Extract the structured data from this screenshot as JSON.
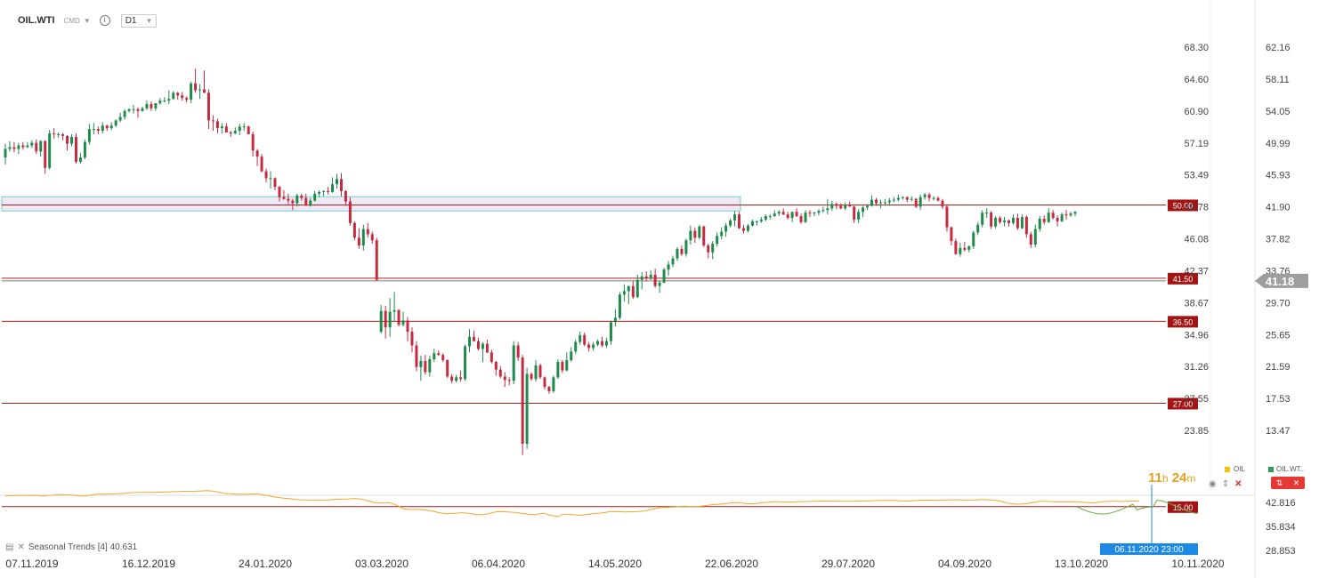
{
  "header": {
    "symbol": "OIL.WTI",
    "exchange": "CMD",
    "timeframe": "D1"
  },
  "chart_data": {
    "type": "candlestick",
    "candles": [
      [
        55.5,
        57.1,
        54.7,
        56.5
      ],
      [
        56.5,
        57.4,
        56.2,
        56.7
      ],
      [
        56.7,
        57.3,
        56.1,
        56.5
      ],
      [
        56.5,
        57.2,
        55.9,
        56.9
      ],
      [
        56.9,
        57.3,
        56.4,
        56.7
      ],
      [
        56.7,
        57.3,
        56.6,
        56.9
      ],
      [
        56.9,
        57.5,
        56.6,
        57.2
      ],
      [
        57.2,
        57.6,
        55.9,
        56.2
      ],
      [
        56.2,
        57.5,
        55.6,
        57.4
      ],
      [
        57.4,
        57.5,
        53.6,
        54.3
      ],
      [
        54.3,
        58.7,
        54.1,
        58.3
      ],
      [
        58.3,
        58.9,
        57.7,
        58.2
      ],
      [
        58.2,
        58.4,
        57.8,
        58.2
      ],
      [
        58.2,
        58.3,
        57.5,
        58.0
      ],
      [
        58.0,
        58.1,
        56.3,
        57.1
      ],
      [
        57.1,
        58.2,
        56.8,
        57.9
      ],
      [
        57.9,
        58.3,
        54.8,
        55.0
      ],
      [
        55.0,
        56.0,
        54.8,
        55.5
      ],
      [
        55.5,
        57.6,
        55.3,
        57.3
      ],
      [
        57.3,
        59.4,
        57.0,
        58.8
      ],
      [
        58.8,
        59.5,
        58.2,
        58.8
      ],
      [
        58.8,
        59.1,
        58.2,
        58.6
      ],
      [
        58.6,
        59.6,
        58.3,
        59.2
      ],
      [
        59.2,
        59.3,
        58.6,
        58.9
      ],
      [
        58.9,
        59.6,
        58.7,
        59.2
      ],
      [
        59.2,
        59.9,
        59.0,
        59.8
      ],
      [
        59.8,
        60.7,
        59.6,
        60.2
      ],
      [
        60.2,
        61.1,
        59.9,
        60.9
      ],
      [
        60.9,
        61.2,
        60.7,
        61.1
      ],
      [
        61.1,
        61.6,
        60.6,
        61.1
      ],
      [
        61.1,
        61.3,
        60.1,
        60.9
      ],
      [
        60.9,
        61.4,
        60.8,
        61.2
      ],
      [
        61.2,
        62.1,
        61.0,
        61.7
      ],
      [
        61.7,
        62.0,
        60.9,
        61.2
      ],
      [
        61.2,
        61.8,
        60.9,
        61.8
      ],
      [
        61.8,
        62.4,
        61.6,
        62.1
      ],
      [
        62.1,
        62.5,
        61.9,
        62.1
      ],
      [
        62.1,
        63.3,
        61.7,
        62.3
      ],
      [
        62.3,
        63.2,
        62.2,
        63.0
      ],
      [
        63.0,
        63.1,
        62.2,
        62.7
      ],
      [
        62.7,
        63.1,
        62.1,
        62.4
      ],
      [
        62.4,
        62.6,
        61.9,
        62.2
      ],
      [
        62.2,
        64.3,
        61.8,
        64.1
      ],
      [
        64.1,
        65.8,
        63.0,
        63.3
      ],
      [
        63.3,
        64.0,
        62.3,
        63.4
      ],
      [
        63.4,
        65.6,
        63.0,
        63.0
      ],
      [
        63.0,
        63.4,
        58.8,
        59.8
      ],
      [
        59.8,
        60.4,
        58.6,
        59.7
      ],
      [
        59.7,
        60.0,
        58.3,
        58.9
      ],
      [
        58.9,
        59.5,
        58.3,
        59.1
      ],
      [
        59.1,
        59.5,
        58.4,
        58.4
      ],
      [
        58.4,
        58.6,
        57.9,
        58.3
      ],
      [
        58.3,
        59.0,
        58.2,
        58.6
      ],
      [
        58.6,
        59.4,
        58.1,
        59.1
      ],
      [
        59.1,
        59.5,
        58.6,
        59.1
      ],
      [
        59.1,
        59.2,
        58.2,
        58.2
      ],
      [
        58.2,
        58.5,
        55.6,
        56.3
      ],
      [
        56.3,
        56.5,
        54.5,
        55.6
      ],
      [
        55.6,
        55.9,
        53.8,
        53.9
      ],
      [
        53.9,
        54.2,
        52.6,
        53.1
      ],
      [
        53.1,
        53.9,
        51.9,
        53.1
      ],
      [
        53.1,
        53.2,
        51.7,
        52.1
      ],
      [
        52.1,
        52.2,
        50.4,
        50.9
      ],
      [
        50.9,
        51.7,
        50.6,
        50.7
      ],
      [
        50.7,
        51.3,
        50.1,
        50.5
      ],
      [
        50.5,
        50.7,
        49.4,
        50.2
      ],
      [
        50.2,
        51.3,
        49.8,
        51.1
      ],
      [
        51.1,
        51.3,
        50.5,
        50.8
      ],
      [
        50.8,
        51.3,
        49.9,
        49.9
      ],
      [
        49.9,
        50.8,
        49.8,
        50.5
      ],
      [
        50.5,
        51.6,
        50.4,
        51.3
      ],
      [
        51.3,
        51.7,
        50.9,
        51.5
      ],
      [
        51.5,
        51.7,
        51.0,
        51.6
      ],
      [
        51.6,
        52.1,
        51.2,
        51.5
      ],
      [
        51.5,
        53.2,
        51.4,
        52.4
      ],
      [
        52.4,
        53.6,
        51.9,
        53.0
      ],
      [
        53.0,
        53.7,
        51.0,
        51.6
      ],
      [
        51.6,
        51.7,
        49.9,
        50.4
      ],
      [
        50.4,
        50.9,
        47.6,
        47.9
      ],
      [
        47.9,
        48.1,
        45.9,
        46.2
      ],
      [
        46.2,
        47.3,
        44.9,
        45.3
      ],
      [
        45.3,
        47.7,
        44.7,
        47.2
      ],
      [
        47.2,
        47.9,
        46.2,
        46.6
      ],
      [
        46.6,
        46.9,
        45.5,
        45.9
      ],
      [
        45.9,
        46.2,
        41.2,
        41.3
      ],
      [
        35.3,
        38.4,
        35.1,
        37.7
      ],
      [
        37.7,
        38.3,
        34.5,
        35.8
      ],
      [
        35.8,
        39.2,
        34.7,
        37.6
      ],
      [
        37.6,
        39.9,
        36.4,
        37.8
      ],
      [
        37.8,
        37.9,
        35.9,
        36.1
      ],
      [
        36.1,
        37.6,
        35.9,
        36.6
      ],
      [
        36.6,
        37.0,
        34.2,
        35.3
      ],
      [
        35.3,
        35.8,
        32.9,
        33.7
      ],
      [
        33.7,
        34.2,
        30.7,
        31.2
      ],
      [
        31.2,
        32.5,
        29.6,
        31.9
      ],
      [
        31.9,
        32.6,
        30.3,
        30.6
      ],
      [
        30.6,
        32.5,
        30.1,
        32.1
      ],
      [
        32.1,
        33.3,
        31.8,
        32.8
      ],
      [
        32.8,
        33.1,
        32.5,
        32.6
      ],
      [
        32.6,
        32.8,
        31.8,
        32.0
      ],
      [
        32.0,
        32.1,
        29.9,
        30.1
      ],
      [
        30.1,
        30.4,
        29.3,
        29.6
      ],
      [
        29.6,
        30.3,
        29.4,
        30.0
      ],
      [
        30.0,
        30.8,
        29.5,
        29.8
      ],
      [
        29.8,
        33.8,
        29.6,
        33.6
      ],
      [
        33.6,
        35.6,
        32.9,
        34.7
      ],
      [
        34.7,
        35.4,
        34.2,
        34.2
      ],
      [
        34.2,
        34.6,
        33.1,
        33.3
      ],
      [
        33.3,
        34.1,
        31.8,
        33.9
      ],
      [
        33.9,
        34.4,
        32.8,
        32.9
      ],
      [
        32.9,
        33.2,
        31.6,
        31.8
      ],
      [
        31.8,
        31.9,
        30.2,
        30.9
      ],
      [
        30.9,
        31.3,
        29.9,
        30.1
      ],
      [
        30.1,
        30.6,
        28.9,
        29.7
      ],
      [
        29.7,
        30.0,
        29.1,
        29.6
      ],
      [
        29.6,
        34.2,
        29.2,
        33.7
      ],
      [
        33.7,
        34.1,
        31.9,
        32.3
      ],
      [
        32.3,
        32.6,
        21.0,
        22.3
      ],
      [
        22.3,
        31.1,
        21.7,
        30.4
      ],
      [
        30.4,
        30.6,
        29.6,
        29.8
      ],
      [
        29.8,
        32.0,
        29.5,
        31.4
      ],
      [
        31.4,
        31.6,
        29.8,
        30.0
      ],
      [
        30.0,
        30.1,
        28.6,
        28.9
      ],
      [
        28.9,
        29.0,
        28.1,
        28.4
      ],
      [
        28.4,
        30.2,
        28.2,
        30.0
      ],
      [
        30.0,
        32.1,
        29.8,
        31.8
      ],
      [
        31.8,
        32.0,
        30.5,
        30.8
      ],
      [
        30.8,
        32.9,
        30.7,
        32.0
      ],
      [
        32.0,
        33.5,
        31.8,
        33.0
      ],
      [
        33.0,
        34.4,
        32.7,
        34.1
      ],
      [
        34.1,
        35.3,
        33.8,
        34.9
      ],
      [
        34.9,
        35.2,
        33.6,
        33.8
      ],
      [
        33.8,
        34.1,
        33.0,
        33.4
      ],
      [
        33.4,
        34.1,
        33.1,
        33.8
      ],
      [
        33.8,
        34.4,
        33.6,
        34.2
      ],
      [
        34.2,
        34.7,
        33.5,
        33.7
      ],
      [
        33.7,
        34.6,
        33.4,
        34.2
      ],
      [
        34.2,
        36.6,
        33.8,
        36.4
      ],
      [
        36.4,
        37.9,
        35.9,
        36.9
      ],
      [
        36.9,
        39.9,
        36.7,
        39.6
      ],
      [
        39.6,
        40.8,
        38.8,
        40.0
      ],
      [
        40.0,
        40.6,
        38.5,
        40.6
      ],
      [
        40.6,
        41.2,
        39.1,
        39.3
      ],
      [
        39.3,
        41.9,
        39.2,
        41.3
      ],
      [
        41.3,
        42.2,
        40.2,
        41.7
      ],
      [
        41.7,
        42.3,
        41.1,
        41.5
      ],
      [
        41.5,
        42.4,
        41.3,
        41.9
      ],
      [
        41.9,
        42.6,
        40.4,
        40.6
      ],
      [
        40.6,
        41.2,
        39.8,
        41.0
      ],
      [
        41.0,
        42.7,
        40.9,
        42.5
      ],
      [
        42.5,
        43.5,
        41.8,
        43.1
      ],
      [
        43.1,
        44.1,
        42.8,
        43.8
      ],
      [
        43.8,
        45.1,
        43.5,
        44.9
      ],
      [
        44.9,
        45.3,
        44.1,
        44.3
      ],
      [
        44.3,
        46.1,
        44.0,
        45.9
      ],
      [
        45.9,
        47.6,
        45.4,
        47.0
      ],
      [
        47.0,
        47.4,
        45.6,
        46.2
      ],
      [
        46.2,
        47.7,
        46.0,
        47.5
      ],
      [
        47.5,
        47.6,
        45.1,
        45.3
      ],
      [
        45.3,
        45.5,
        43.8,
        44.5
      ],
      [
        44.5,
        45.8,
        43.7,
        45.5
      ],
      [
        45.5,
        46.8,
        45.2,
        46.4
      ],
      [
        46.4,
        47.4,
        46.0,
        46.9
      ],
      [
        46.9,
        47.9,
        46.3,
        47.6
      ],
      [
        47.6,
        48.4,
        47.4,
        48.2
      ],
      [
        48.2,
        49.3,
        47.5,
        48.9
      ],
      [
        48.9,
        49.2,
        47.2,
        47.3
      ],
      [
        47.3,
        47.7,
        46.7,
        47.0
      ],
      [
        47.0,
        47.8,
        46.8,
        47.6
      ],
      [
        47.6,
        48.3,
        47.5,
        48.1
      ],
      [
        48.1,
        48.2,
        47.6,
        48.1
      ],
      [
        48.1,
        48.6,
        47.9,
        48.3
      ],
      [
        48.3,
        48.9,
        48.1,
        48.7
      ],
      [
        48.7,
        48.9,
        48.3,
        48.7
      ],
      [
        48.7,
        49.4,
        48.6,
        49.0
      ],
      [
        49.0,
        49.4,
        48.7,
        49.2
      ],
      [
        49.2,
        49.6,
        48.8,
        48.9
      ],
      [
        48.9,
        49.2,
        48.3,
        48.5
      ],
      [
        48.5,
        49.2,
        48.0,
        49.2
      ],
      [
        49.2,
        49.6,
        48.6,
        48.7
      ],
      [
        48.7,
        49.0,
        47.8,
        48.0
      ],
      [
        48.0,
        49.4,
        47.9,
        49.1
      ],
      [
        49.1,
        49.4,
        48.6,
        49.0
      ],
      [
        49.0,
        49.2,
        48.7,
        49.1
      ],
      [
        49.1,
        49.5,
        48.8,
        49.3
      ],
      [
        49.3,
        49.8,
        49.1,
        49.4
      ],
      [
        49.4,
        50.7,
        48.9,
        49.6
      ],
      [
        49.6,
        50.5,
        49.3,
        50.1
      ],
      [
        50.1,
        50.3,
        49.5,
        49.9
      ],
      [
        49.9,
        50.2,
        49.5,
        49.6
      ],
      [
        49.6,
        50.3,
        49.4,
        50.0
      ],
      [
        50.0,
        50.4,
        49.8,
        49.8
      ],
      [
        49.8,
        49.9,
        47.9,
        48.3
      ],
      [
        48.3,
        49.5,
        47.9,
        49.2
      ],
      [
        49.2,
        49.9,
        48.6,
        49.7
      ],
      [
        49.7,
        50.1,
        49.4,
        49.9
      ],
      [
        49.9,
        51.1,
        49.8,
        50.6
      ],
      [
        50.6,
        50.8,
        49.9,
        50.2
      ],
      [
        50.2,
        50.6,
        49.6,
        50.3
      ],
      [
        50.3,
        50.7,
        49.9,
        50.3
      ],
      [
        50.3,
        50.8,
        49.9,
        50.5
      ],
      [
        50.5,
        50.9,
        50.3,
        50.6
      ],
      [
        50.6,
        51.2,
        50.4,
        50.8
      ],
      [
        50.8,
        51.0,
        50.6,
        50.9
      ],
      [
        50.9,
        51.0,
        50.3,
        50.6
      ],
      [
        50.6,
        51.0,
        50.4,
        50.7
      ],
      [
        50.7,
        50.8,
        49.6,
        49.8
      ],
      [
        49.8,
        51.2,
        49.4,
        50.9
      ],
      [
        50.9,
        51.4,
        50.6,
        51.2
      ],
      [
        51.2,
        51.4,
        50.4,
        50.8
      ],
      [
        50.8,
        51.0,
        50.5,
        50.8
      ],
      [
        50.8,
        51.0,
        50.4,
        50.5
      ],
      [
        50.5,
        50.7,
        49.5,
        49.8
      ],
      [
        49.8,
        50.0,
        46.9,
        47.4
      ],
      [
        47.4,
        47.5,
        45.3,
        45.8
      ],
      [
        45.8,
        46.1,
        44.2,
        44.3
      ],
      [
        44.3,
        45.6,
        44.0,
        45.0
      ],
      [
        45.0,
        45.7,
        44.6,
        44.8
      ],
      [
        44.8,
        45.3,
        44.5,
        45.2
      ],
      [
        45.2,
        47.0,
        44.9,
        46.8
      ],
      [
        46.8,
        48.0,
        46.5,
        47.7
      ],
      [
        47.7,
        49.4,
        47.4,
        49.1
      ],
      [
        49.1,
        49.6,
        48.5,
        49.1
      ],
      [
        49.1,
        49.3,
        47.2,
        47.5
      ],
      [
        47.5,
        48.7,
        47.3,
        48.5
      ],
      [
        48.5,
        48.7,
        47.8,
        48.0
      ],
      [
        48.0,
        48.6,
        47.5,
        48.2
      ],
      [
        48.2,
        48.3,
        47.5,
        47.9
      ],
      [
        47.9,
        48.9,
        47.7,
        48.5
      ],
      [
        48.5,
        49.0,
        47.1,
        47.3
      ],
      [
        47.3,
        48.9,
        47.2,
        48.6
      ],
      [
        48.6,
        48.8,
        46.2,
        46.6
      ],
      [
        46.6,
        46.9,
        45.0,
        45.4
      ],
      [
        45.4,
        47.7,
        45.1,
        47.2
      ],
      [
        47.2,
        48.7,
        46.9,
        48.4
      ],
      [
        48.4,
        48.8,
        47.7,
        48.0
      ],
      [
        48.0,
        49.6,
        47.9,
        49.1
      ],
      [
        49.1,
        49.4,
        48.3,
        48.5
      ],
      [
        48.5,
        48.8,
        47.5,
        48.1
      ],
      [
        48.1,
        49.1,
        48.0,
        48.9
      ],
      [
        48.9,
        49.4,
        48.3,
        48.8
      ],
      [
        48.8,
        49.2,
        48.6,
        49.0
      ],
      [
        49.0,
        49.3,
        48.7,
        49.2
      ]
    ],
    "price_axis": {
      "labels": [
        "68.30",
        "64.60",
        "60.90",
        "57.19",
        "53.49",
        "49.78",
        "46.08",
        "42.37",
        "38.67",
        "34.96",
        "31.26",
        "27.55",
        "23.85"
      ],
      "min": 16.8,
      "max": 74.0
    },
    "secondary_axis": {
      "labels": [
        "62.16",
        "58.11",
        "54.05",
        "49.99",
        "45.93",
        "41.90",
        "37.82",
        "33.76",
        "29.70",
        "25.65",
        "21.59",
        "17.53",
        "13.47"
      ]
    },
    "horizontal_lines": [
      {
        "price": 50.0,
        "label": "50.00"
      },
      {
        "price": 41.5,
        "label": "41.50"
      },
      {
        "price": 36.5,
        "label": "36.50"
      },
      {
        "price": 27.0,
        "label": "27.00"
      },
      {
        "price": 15.0,
        "label": "15.00"
      }
    ],
    "current_price": {
      "label": "41.18"
    },
    "zone": {
      "price_low": 49.3,
      "price_high": 50.95
    },
    "x_labels": [
      "07.11.2019",
      "16.12.2019",
      "24.01.2020",
      "03.03.2020",
      "06.04.2020",
      "14.05.2020",
      "22.06.2020",
      "29.07.2020",
      "04.09.2020",
      "13.10.2020",
      "10.11.2020"
    ],
    "indicator": {
      "name": "Seasonal Trends",
      "period": "[4]",
      "value": "40.631",
      "axis_labels": [
        "42.816",
        "35.834",
        "28.853"
      ],
      "series": [
        {
          "name": "OIL",
          "color": "#f4a62a"
        },
        {
          "name": "OIL.WT..",
          "color": "#6cab3c"
        }
      ]
    },
    "crosshair_date": "06.11.2020 23:00"
  },
  "countdown": {
    "hours": "11",
    "h_unit": "h",
    "minutes": "24",
    "m_unit": "m"
  },
  "colors": {
    "up": "#1f8a4c",
    "down": "#c62a40",
    "level_line": "#b71c1c",
    "level_label": "#a31515",
    "current_tag": "#9e9e9e",
    "crosshair": "#1e88e5"
  }
}
